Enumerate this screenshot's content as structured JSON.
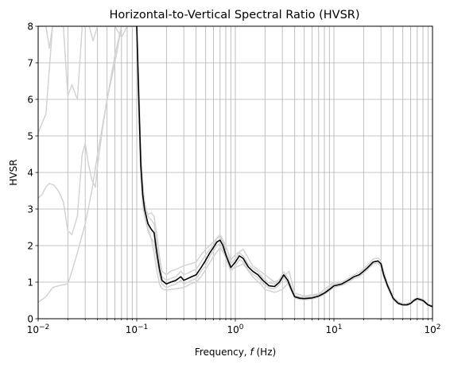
{
  "chart_data": {
    "type": "line",
    "title": "Horizontal-to-Vertical Spectral Ratio (HVSR)",
    "xlabel_prefix": "Frequency, ",
    "xlabel_var": "f",
    "xlabel_suffix": " (Hz)",
    "ylabel": "HVSR",
    "xscale": "log",
    "xlim": [
      0.01,
      100
    ],
    "ylim": [
      0,
      8
    ],
    "grid": "on (major and minor, x); major (y)",
    "yticks": [
      "0",
      "1",
      "2",
      "3",
      "4",
      "5",
      "6",
      "7",
      "8"
    ],
    "xticks": [
      {
        "base": "10",
        "exp": "−2"
      },
      {
        "base": "10",
        "exp": "−1"
      },
      {
        "base": "10",
        "exp": "0"
      },
      {
        "base": "10",
        "exp": "1"
      },
      {
        "base": "10",
        "exp": "2"
      }
    ],
    "colors": {
      "window_curves": "#d3d3d3",
      "mean_curve": "#000000",
      "grid": "#b0b0b0"
    },
    "series": [
      {
        "role": "mean",
        "x": [
          0.1,
          0.105,
          0.11,
          0.115,
          0.12,
          0.13,
          0.14,
          0.15,
          0.16,
          0.17,
          0.18,
          0.2,
          0.22,
          0.25,
          0.28,
          0.3,
          0.33,
          0.36,
          0.4,
          0.45,
          0.5,
          0.55,
          0.6,
          0.65,
          0.7,
          0.75,
          0.8,
          0.9,
          1.0,
          1.1,
          1.2,
          1.35,
          1.5,
          1.7,
          1.9,
          2.2,
          2.5,
          2.8,
          3.1,
          3.4,
          3.7,
          4.0,
          4.5,
          5.0,
          6.0,
          7.0,
          8.0,
          9.0,
          10,
          12,
          14,
          16,
          18,
          20,
          22,
          25,
          28,
          30,
          32,
          35,
          40,
          45,
          50,
          55,
          60,
          65,
          70,
          80,
          90,
          100
        ],
        "y": [
          8.0,
          6.0,
          4.2,
          3.4,
          3.0,
          2.6,
          2.45,
          2.35,
          1.8,
          1.35,
          1.05,
          0.95,
          1.0,
          1.05,
          1.15,
          1.05,
          1.1,
          1.15,
          1.2,
          1.4,
          1.6,
          1.8,
          1.95,
          2.1,
          2.15,
          2.0,
          1.75,
          1.4,
          1.55,
          1.72,
          1.65,
          1.42,
          1.3,
          1.2,
          1.05,
          0.9,
          0.88,
          1.0,
          1.2,
          1.05,
          0.8,
          0.6,
          0.56,
          0.55,
          0.57,
          0.62,
          0.7,
          0.8,
          0.9,
          0.95,
          1.05,
          1.15,
          1.2,
          1.3,
          1.4,
          1.55,
          1.58,
          1.5,
          1.2,
          0.9,
          0.55,
          0.42,
          0.38,
          0.38,
          0.42,
          0.5,
          0.55,
          0.5,
          0.38,
          0.33
        ]
      },
      {
        "role": "window",
        "x": [
          0.01,
          0.012,
          0.014,
          0.016,
          0.018,
          0.02,
          0.022,
          0.025,
          0.028,
          0.03,
          0.033,
          0.036,
          0.04,
          0.05,
          0.06,
          0.07,
          0.08,
          0.09,
          0.1
        ],
        "y": [
          5.1,
          5.6,
          8.0,
          8.0,
          8.0,
          6.1,
          6.4,
          6.0,
          8.0,
          8.0,
          8.0,
          7.6,
          8.0,
          8.0,
          8.0,
          7.7,
          8.0,
          8.0,
          8.0
        ]
      },
      {
        "role": "window",
        "x": [
          0.01,
          0.011,
          0.012,
          0.013,
          0.0145,
          0.016,
          0.018,
          0.02,
          0.022,
          0.025,
          0.028,
          0.03,
          0.032,
          0.035,
          0.038,
          0.04,
          0.045,
          0.05,
          0.06,
          0.07,
          0.08,
          0.09,
          0.1
        ],
        "y": [
          3.3,
          3.4,
          3.6,
          3.7,
          3.65,
          3.5,
          3.2,
          2.4,
          2.3,
          2.8,
          4.5,
          4.8,
          4.3,
          3.8,
          3.6,
          4.2,
          5.2,
          6.0,
          7.0,
          8.0,
          8.0,
          8.0,
          8.0
        ]
      },
      {
        "role": "window",
        "x": [
          0.01,
          0.012,
          0.014,
          0.016,
          0.018,
          0.02,
          0.022,
          0.025,
          0.03,
          0.035,
          0.04,
          0.05,
          0.06,
          0.07,
          0.08,
          0.09,
          0.1
        ],
        "y": [
          0.45,
          0.6,
          0.85,
          0.9,
          0.93,
          0.95,
          1.3,
          1.8,
          2.6,
          3.5,
          4.5,
          6.0,
          7.2,
          8.0,
          8.0,
          8.0,
          8.0
        ]
      },
      {
        "role": "window",
        "x": [
          0.01,
          0.011,
          0.012,
          0.013,
          0.014,
          0.016,
          0.018,
          0.02,
          0.025,
          0.03,
          0.04,
          0.05,
          0.06,
          0.07,
          0.08,
          0.09,
          0.1
        ],
        "y": [
          8.0,
          8.0,
          8.0,
          7.4,
          8.0,
          8.0,
          8.0,
          8.0,
          8.0,
          8.0,
          8.0,
          8.0,
          8.0,
          8.0,
          8.0,
          8.0,
          8.0
        ]
      },
      {
        "role": "window",
        "x": [
          0.1,
          0.105,
          0.11,
          0.115,
          0.12,
          0.13,
          0.14,
          0.15,
          0.16,
          0.17,
          0.18,
          0.2,
          0.22,
          0.25,
          0.28,
          0.3,
          0.33,
          0.36,
          0.4,
          0.45,
          0.5,
          0.55,
          0.6,
          0.65,
          0.7,
          0.75,
          0.8,
          0.9,
          1.0,
          1.1,
          1.2,
          1.35,
          1.5,
          1.7,
          1.9,
          2.2,
          2.5,
          2.8,
          3.1,
          3.4,
          3.7,
          4.0,
          4.5,
          5.0,
          6.0,
          7.0,
          8.0,
          9.0,
          10,
          12,
          14,
          16,
          18,
          20,
          22,
          25,
          28,
          30,
          32,
          35,
          40,
          45,
          50,
          55,
          60,
          65,
          70,
          80,
          90,
          100
        ],
        "y": [
          8.0,
          6.4,
          4.6,
          3.7,
          3.2,
          2.8,
          2.7,
          2.6,
          2.0,
          1.5,
          1.15,
          1.05,
          1.1,
          1.15,
          1.3,
          1.2,
          1.25,
          1.3,
          1.35,
          1.55,
          1.75,
          1.9,
          2.0,
          2.2,
          2.25,
          2.1,
          1.85,
          1.5,
          1.65,
          1.8,
          1.72,
          1.5,
          1.38,
          1.28,
          1.12,
          0.98,
          0.95,
          1.08,
          1.28,
          1.12,
          0.86,
          0.64,
          0.6,
          0.59,
          0.61,
          0.66,
          0.74,
          0.84,
          0.95,
          1.0,
          1.1,
          1.2,
          1.27,
          1.36,
          1.47,
          1.63,
          1.66,
          1.58,
          1.28,
          0.96,
          0.6,
          0.46,
          0.41,
          0.41,
          0.45,
          0.53,
          0.58,
          0.53,
          0.4,
          0.35
        ]
      },
      {
        "role": "window",
        "x": [
          0.1,
          0.105,
          0.11,
          0.115,
          0.12,
          0.13,
          0.14,
          0.15,
          0.16,
          0.17,
          0.18,
          0.2,
          0.22,
          0.25,
          0.28,
          0.3,
          0.33,
          0.36,
          0.4,
          0.45,
          0.5,
          0.55,
          0.6,
          0.65,
          0.7,
          0.75,
          0.8,
          0.9,
          1.0,
          1.1,
          1.2,
          1.35,
          1.5,
          1.7,
          1.9,
          2.2,
          2.5,
          2.8,
          3.1,
          3.4,
          3.7,
          4.0,
          4.5,
          5.0,
          6.0,
          7.0,
          8.0,
          9.0,
          10,
          12,
          14,
          16,
          18,
          20,
          22,
          25,
          28,
          30,
          32,
          35,
          40,
          45,
          50,
          55,
          60,
          65,
          70,
          80,
          90,
          100
        ],
        "y": [
          7.5,
          5.6,
          3.9,
          3.1,
          2.8,
          2.4,
          2.2,
          2.1,
          1.6,
          1.2,
          0.95,
          0.85,
          0.9,
          0.95,
          1.05,
          0.95,
          1.0,
          1.05,
          1.1,
          1.3,
          1.45,
          1.7,
          1.85,
          2.0,
          2.05,
          1.9,
          1.65,
          1.3,
          1.45,
          1.62,
          1.56,
          1.34,
          1.22,
          1.12,
          0.98,
          0.83,
          0.82,
          0.93,
          1.12,
          0.98,
          0.75,
          0.57,
          0.53,
          0.52,
          0.54,
          0.59,
          0.67,
          0.77,
          0.86,
          0.91,
          1.0,
          1.1,
          1.15,
          1.25,
          1.35,
          1.5,
          1.52,
          1.43,
          1.14,
          0.85,
          0.52,
          0.4,
          0.36,
          0.36,
          0.4,
          0.48,
          0.52,
          0.47,
          0.36,
          0.31
        ]
      },
      {
        "role": "window",
        "x": [
          0.1,
          0.11,
          0.12,
          0.13,
          0.14,
          0.15,
          0.16,
          0.17,
          0.18,
          0.2,
          0.22,
          0.25,
          0.3,
          0.35,
          0.4,
          0.45,
          0.5,
          0.6,
          0.7,
          0.8,
          0.9,
          1.0,
          1.2,
          1.5,
          1.8,
          2.0,
          2.5,
          3.0,
          3.5,
          4.0,
          5.0,
          7.0,
          10
        ],
        "y": [
          8.0,
          4.0,
          3.0,
          2.5,
          2.2,
          1.8,
          1.3,
          0.95,
          0.82,
          0.78,
          0.8,
          0.82,
          0.85,
          0.95,
          1.0,
          1.15,
          1.35,
          1.7,
          1.95,
          1.7,
          1.35,
          1.4,
          1.5,
          1.15,
          0.95,
          0.8,
          0.72,
          0.8,
          1.0,
          0.62,
          0.54,
          0.6,
          0.88
        ]
      },
      {
        "role": "window",
        "x": [
          0.12,
          0.13,
          0.14,
          0.15,
          0.16,
          0.17,
          0.18,
          0.2,
          0.22,
          0.25,
          0.3,
          0.35,
          0.4,
          0.45,
          0.5,
          0.6,
          0.7,
          0.8,
          0.9,
          1.0,
          1.2,
          1.5,
          2.0,
          2.5,
          3.0,
          3.5,
          4.0,
          5.0,
          7.0,
          10
        ],
        "y": [
          3.1,
          2.85,
          2.9,
          2.8,
          2.3,
          1.7,
          1.3,
          1.2,
          1.3,
          1.35,
          1.45,
          1.5,
          1.55,
          1.75,
          1.9,
          2.1,
          2.3,
          2.0,
          1.6,
          1.75,
          1.9,
          1.45,
          1.2,
          1.0,
          1.1,
          1.3,
          0.7,
          0.62,
          0.68,
          1.0
        ]
      }
    ]
  }
}
